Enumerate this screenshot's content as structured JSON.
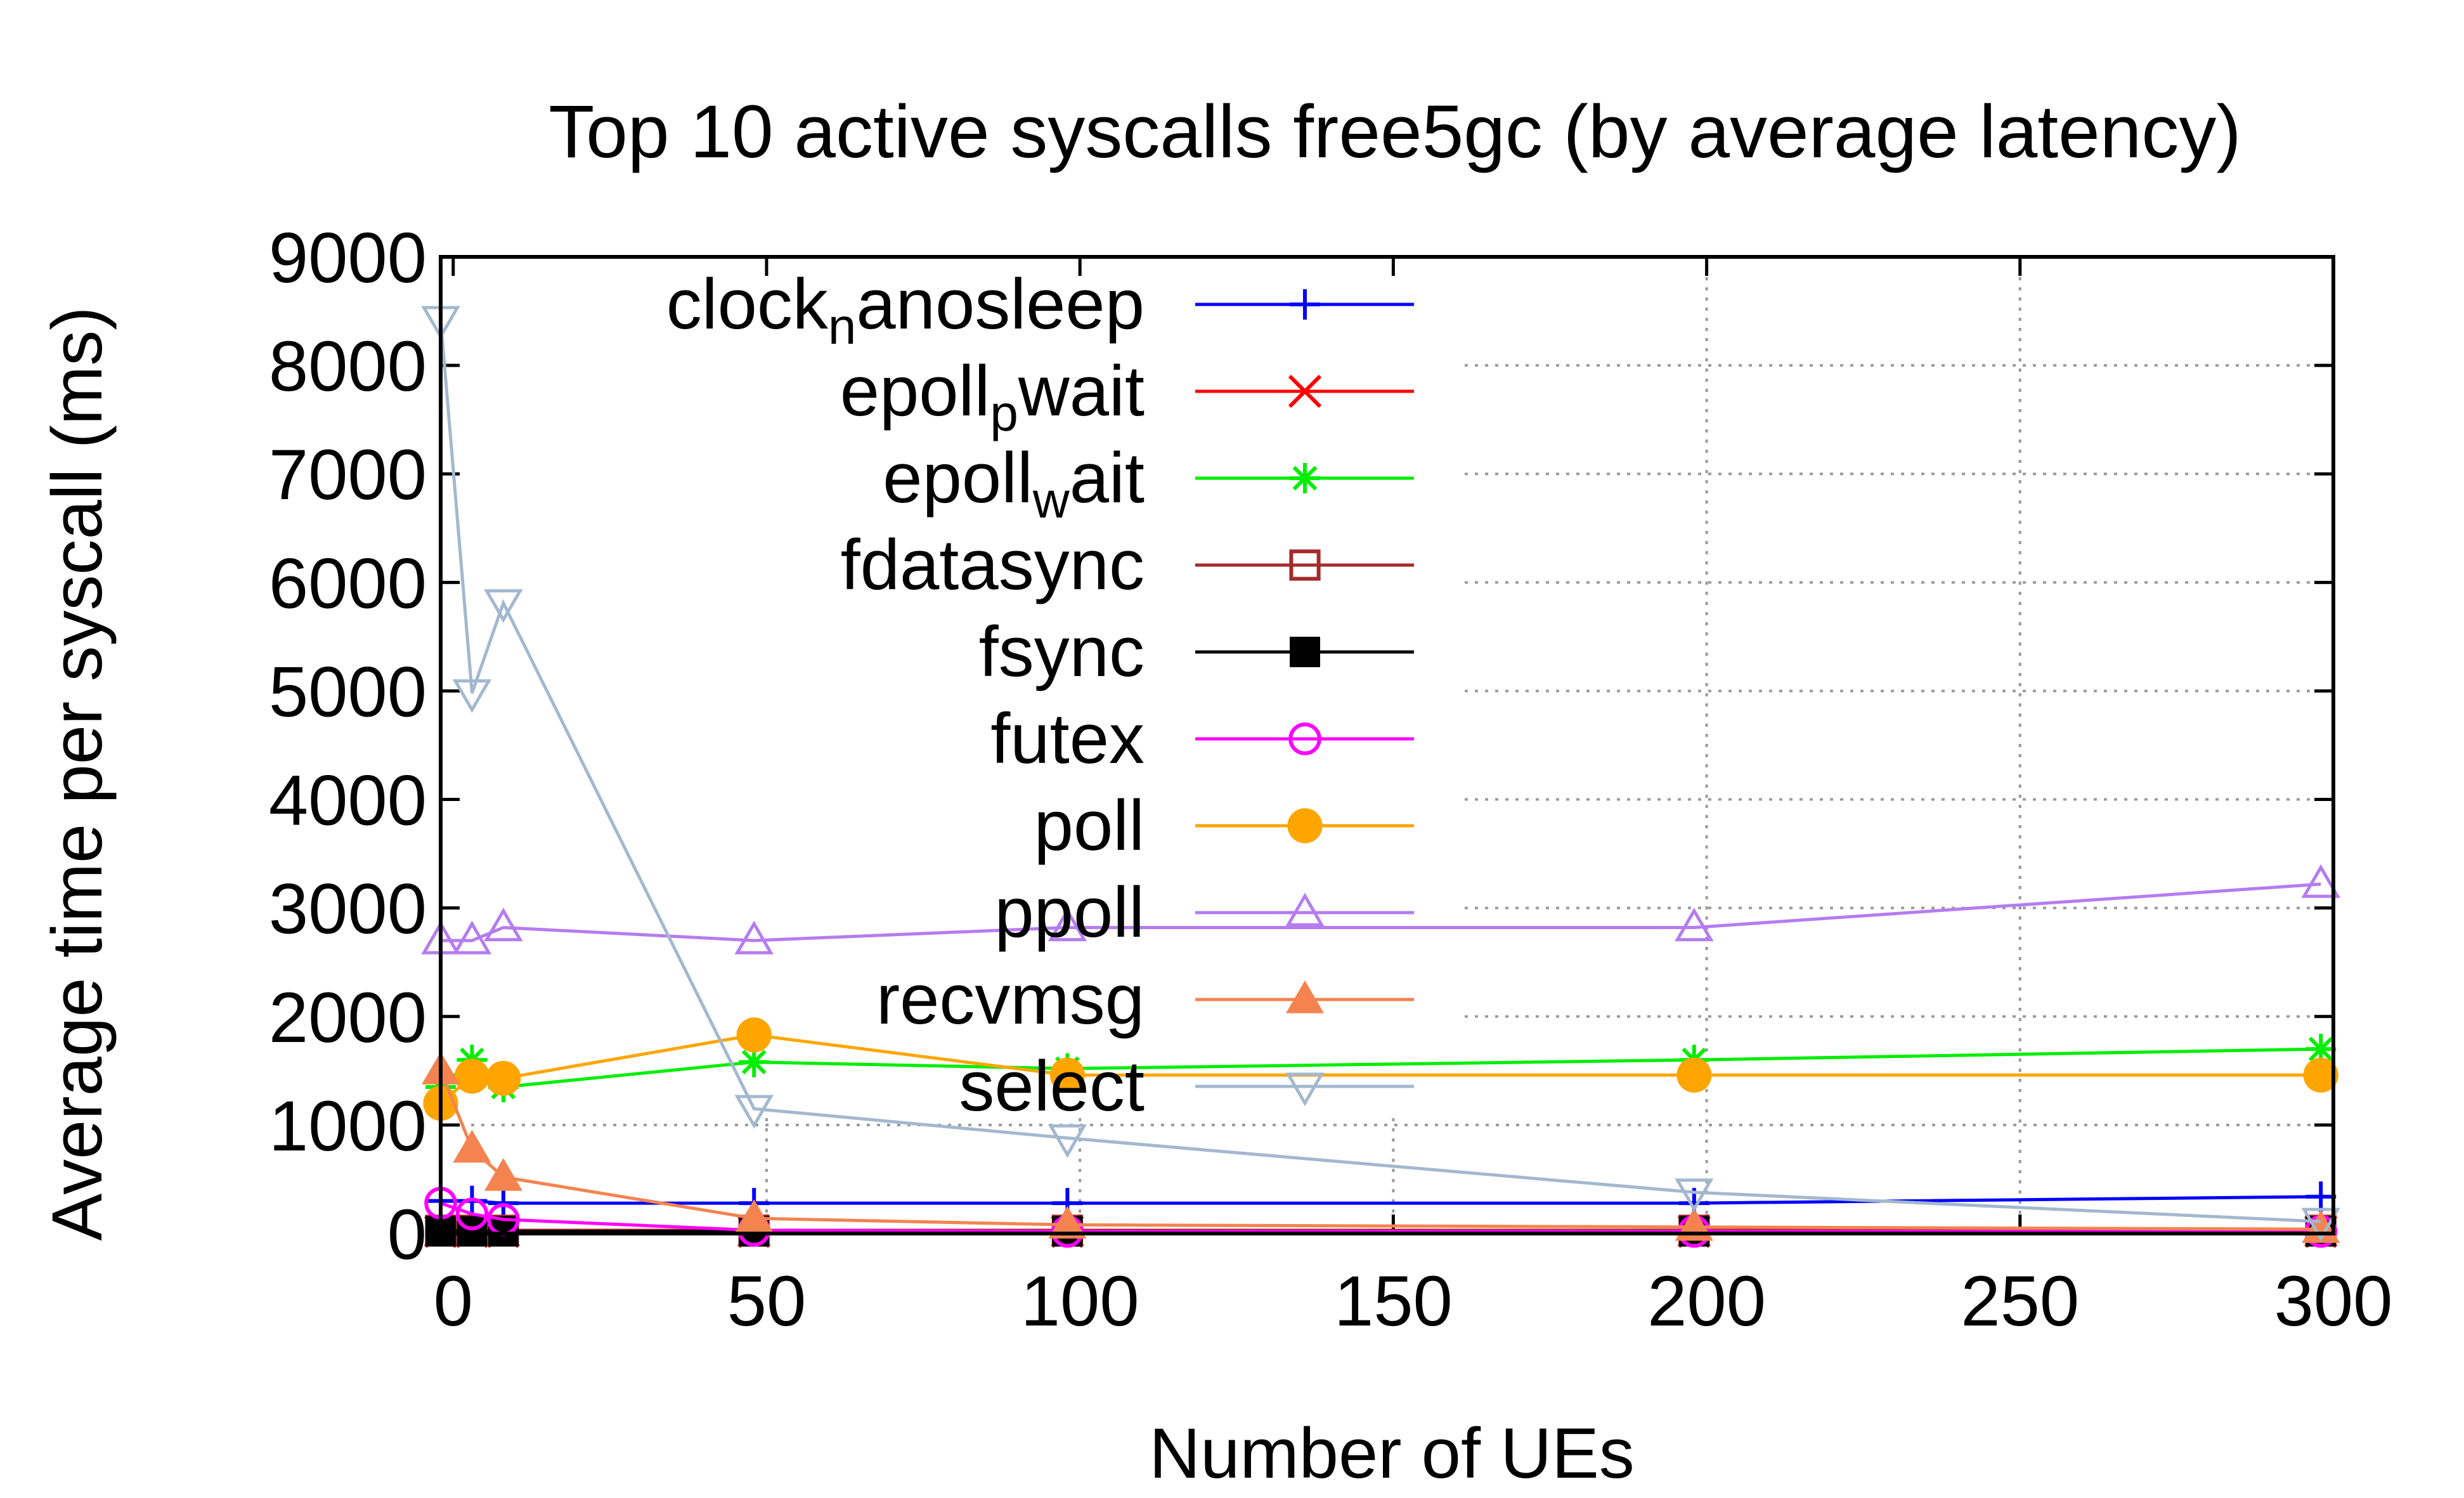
{
  "chart_data": {
    "type": "line",
    "title": "Top 10 active syscalls free5gc (by average latency)",
    "xlabel": "Number of UEs",
    "ylabel": "Average time per syscall (ms)",
    "xlim": [
      -2,
      300
    ],
    "ylim": [
      0,
      9000
    ],
    "xticks": [
      0,
      50,
      100,
      150,
      200,
      250,
      300
    ],
    "yticks": [
      0,
      1000,
      2000,
      3000,
      4000,
      5000,
      6000,
      7000,
      8000,
      9000
    ],
    "grid": true,
    "legend_position": "top-left",
    "x": [
      -2,
      3,
      8,
      48,
      98,
      198,
      298
    ],
    "series": [
      {
        "name": "clock_nanosleep",
        "name_main": "clock",
        "name_sub": "n",
        "name_rest": "anosleep",
        "color": "#0000ff",
        "marker": "plus",
        "values": [
          300,
          300,
          280,
          280,
          280,
          280,
          340
        ]
      },
      {
        "name": "epoll_pwait",
        "name_main": "epoll",
        "name_sub": "p",
        "name_rest": "wait",
        "color": "#ff0000",
        "marker": "cross",
        "values": [
          20,
          20,
          20,
          20,
          20,
          20,
          20
        ]
      },
      {
        "name": "epoll_wait",
        "name_main": "epoll",
        "name_sub": "w",
        "name_rest": "ait",
        "color": "#00ee00",
        "marker": "asterisk",
        "values": [
          1350,
          1600,
          1350,
          1580,
          1520,
          1600,
          1700
        ]
      },
      {
        "name": "fdatasync",
        "color": "#a52a2a",
        "marker": "square-open",
        "values": [
          30,
          30,
          30,
          30,
          30,
          30,
          30
        ]
      },
      {
        "name": "fsync",
        "color": "#000000",
        "marker": "square-filled",
        "values": [
          20,
          20,
          20,
          20,
          20,
          20,
          20
        ]
      },
      {
        "name": "futex",
        "color": "#ff00ff",
        "marker": "circle-open",
        "values": [
          280,
          180,
          130,
          30,
          20,
          20,
          20
        ]
      },
      {
        "name": "poll",
        "color": "#ffa500",
        "marker": "circle-filled",
        "values": [
          1200,
          1450,
          1430,
          1830,
          1460,
          1460,
          1460
        ]
      },
      {
        "name": "ppoll",
        "color": "#b57cf0",
        "marker": "triangle-up-open",
        "values": [
          2700,
          2700,
          2820,
          2700,
          2820,
          2820,
          3220
        ]
      },
      {
        "name": "recvmsg",
        "color": "#f4834f",
        "marker": "triangle-up-filled",
        "values": [
          1500,
          780,
          520,
          140,
          80,
          60,
          40
        ]
      },
      {
        "name": "select",
        "color": "#a3b8cf",
        "marker": "triangle-down-open",
        "values": [
          8420,
          4980,
          5810,
          1150,
          880,
          380,
          110
        ]
      }
    ]
  }
}
